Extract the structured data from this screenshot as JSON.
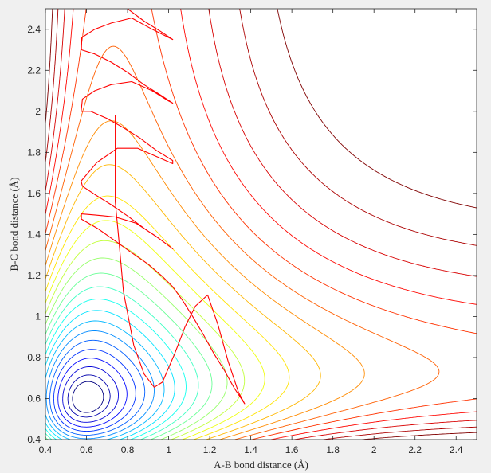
{
  "chart_data": {
    "type": "contour",
    "title": "",
    "xlabel": "A-B bond distance (Å)",
    "ylabel": "B-C bond distance (Å)",
    "xlim": [
      0.4,
      2.5
    ],
    "ylim": [
      0.4,
      2.5
    ],
    "xticks": [
      0.4,
      0.6,
      0.8,
      1,
      1.2,
      1.4,
      1.6,
      1.8,
      2,
      2.2,
      2.4
    ],
    "yticks": [
      0.4,
      0.6,
      0.8,
      1,
      1.2,
      1.4,
      1.6,
      1.8,
      2,
      2.2,
      2.4
    ],
    "grid": false,
    "legend": "none",
    "colormap": "jet",
    "contour_levels": 24,
    "potential": {
      "description_level_min": -6.6,
      "level_max": 4.6,
      "r_e": 0.74,
      "well_depth": 4.75,
      "morse_a": 1.94,
      "saddle_r1": 0.93,
      "saddle_r2": 0.93
    },
    "trajectory": {
      "color": "#ff0000",
      "points": [
        [
          0.74,
          1.98
        ],
        [
          0.74,
          1.56
        ],
        [
          0.755,
          1.4
        ],
        [
          0.78,
          1.12
        ],
        [
          0.83,
          0.86
        ],
        [
          0.88,
          0.72
        ],
        [
          0.93,
          0.655
        ],
        [
          0.97,
          0.68
        ],
        [
          1.03,
          0.82
        ],
        [
          1.08,
          0.95
        ],
        [
          1.13,
          1.05
        ],
        [
          1.19,
          1.105
        ],
        [
          1.24,
          0.96
        ],
        [
          1.29,
          0.78
        ],
        [
          1.34,
          0.63
        ],
        [
          1.37,
          0.575
        ],
        [
          1.32,
          0.65
        ],
        [
          1.27,
          0.74
        ],
        [
          1.22,
          0.82
        ],
        [
          1.17,
          0.91
        ],
        [
          1.12,
          0.995
        ],
        [
          1.07,
          1.075
        ],
        [
          1.02,
          1.145
        ],
        [
          0.97,
          1.195
        ],
        [
          0.9,
          1.255
        ],
        [
          0.8,
          1.325
        ],
        [
          0.66,
          1.425
        ],
        [
          0.575,
          1.475
        ],
        [
          0.575,
          1.5
        ],
        [
          0.64,
          1.495
        ],
        [
          0.74,
          1.485
        ],
        [
          0.84,
          1.455
        ],
        [
          0.94,
          1.39
        ],
        [
          1.0,
          1.345
        ],
        [
          1.02,
          1.33
        ],
        [
          0.96,
          1.375
        ],
        [
          0.88,
          1.43
        ],
        [
          0.8,
          1.49
        ],
        [
          0.72,
          1.545
        ],
        [
          0.64,
          1.595
        ],
        [
          0.58,
          1.635
        ],
        [
          0.574,
          1.66
        ],
        [
          0.65,
          1.75
        ],
        [
          0.75,
          1.82
        ],
        [
          0.85,
          1.82
        ],
        [
          0.94,
          1.78
        ],
        [
          1.02,
          1.745
        ],
        [
          1.02,
          1.76
        ],
        [
          0.94,
          1.81
        ],
        [
          0.86,
          1.87
        ],
        [
          0.78,
          1.92
        ],
        [
          0.7,
          1.965
        ],
        [
          0.62,
          2.0
        ],
        [
          0.574,
          2.0
        ],
        [
          0.58,
          2.06
        ],
        [
          0.64,
          2.1
        ],
        [
          0.72,
          2.13
        ],
        [
          0.82,
          2.145
        ],
        [
          0.92,
          2.1
        ],
        [
          1.0,
          2.05
        ],
        [
          1.02,
          2.04
        ],
        [
          0.96,
          2.08
        ],
        [
          0.88,
          2.13
        ],
        [
          0.8,
          2.19
        ],
        [
          0.72,
          2.24
        ],
        [
          0.64,
          2.28
        ],
        [
          0.575,
          2.3
        ],
        [
          0.577,
          2.36
        ],
        [
          0.64,
          2.4
        ],
        [
          0.72,
          2.43
        ],
        [
          0.82,
          2.455
        ],
        [
          0.92,
          2.4
        ],
        [
          1.0,
          2.36
        ],
        [
          1.02,
          2.35
        ],
        [
          0.96,
          2.39
        ],
        [
          0.88,
          2.44
        ],
        [
          0.8,
          2.5
        ]
      ]
    }
  }
}
